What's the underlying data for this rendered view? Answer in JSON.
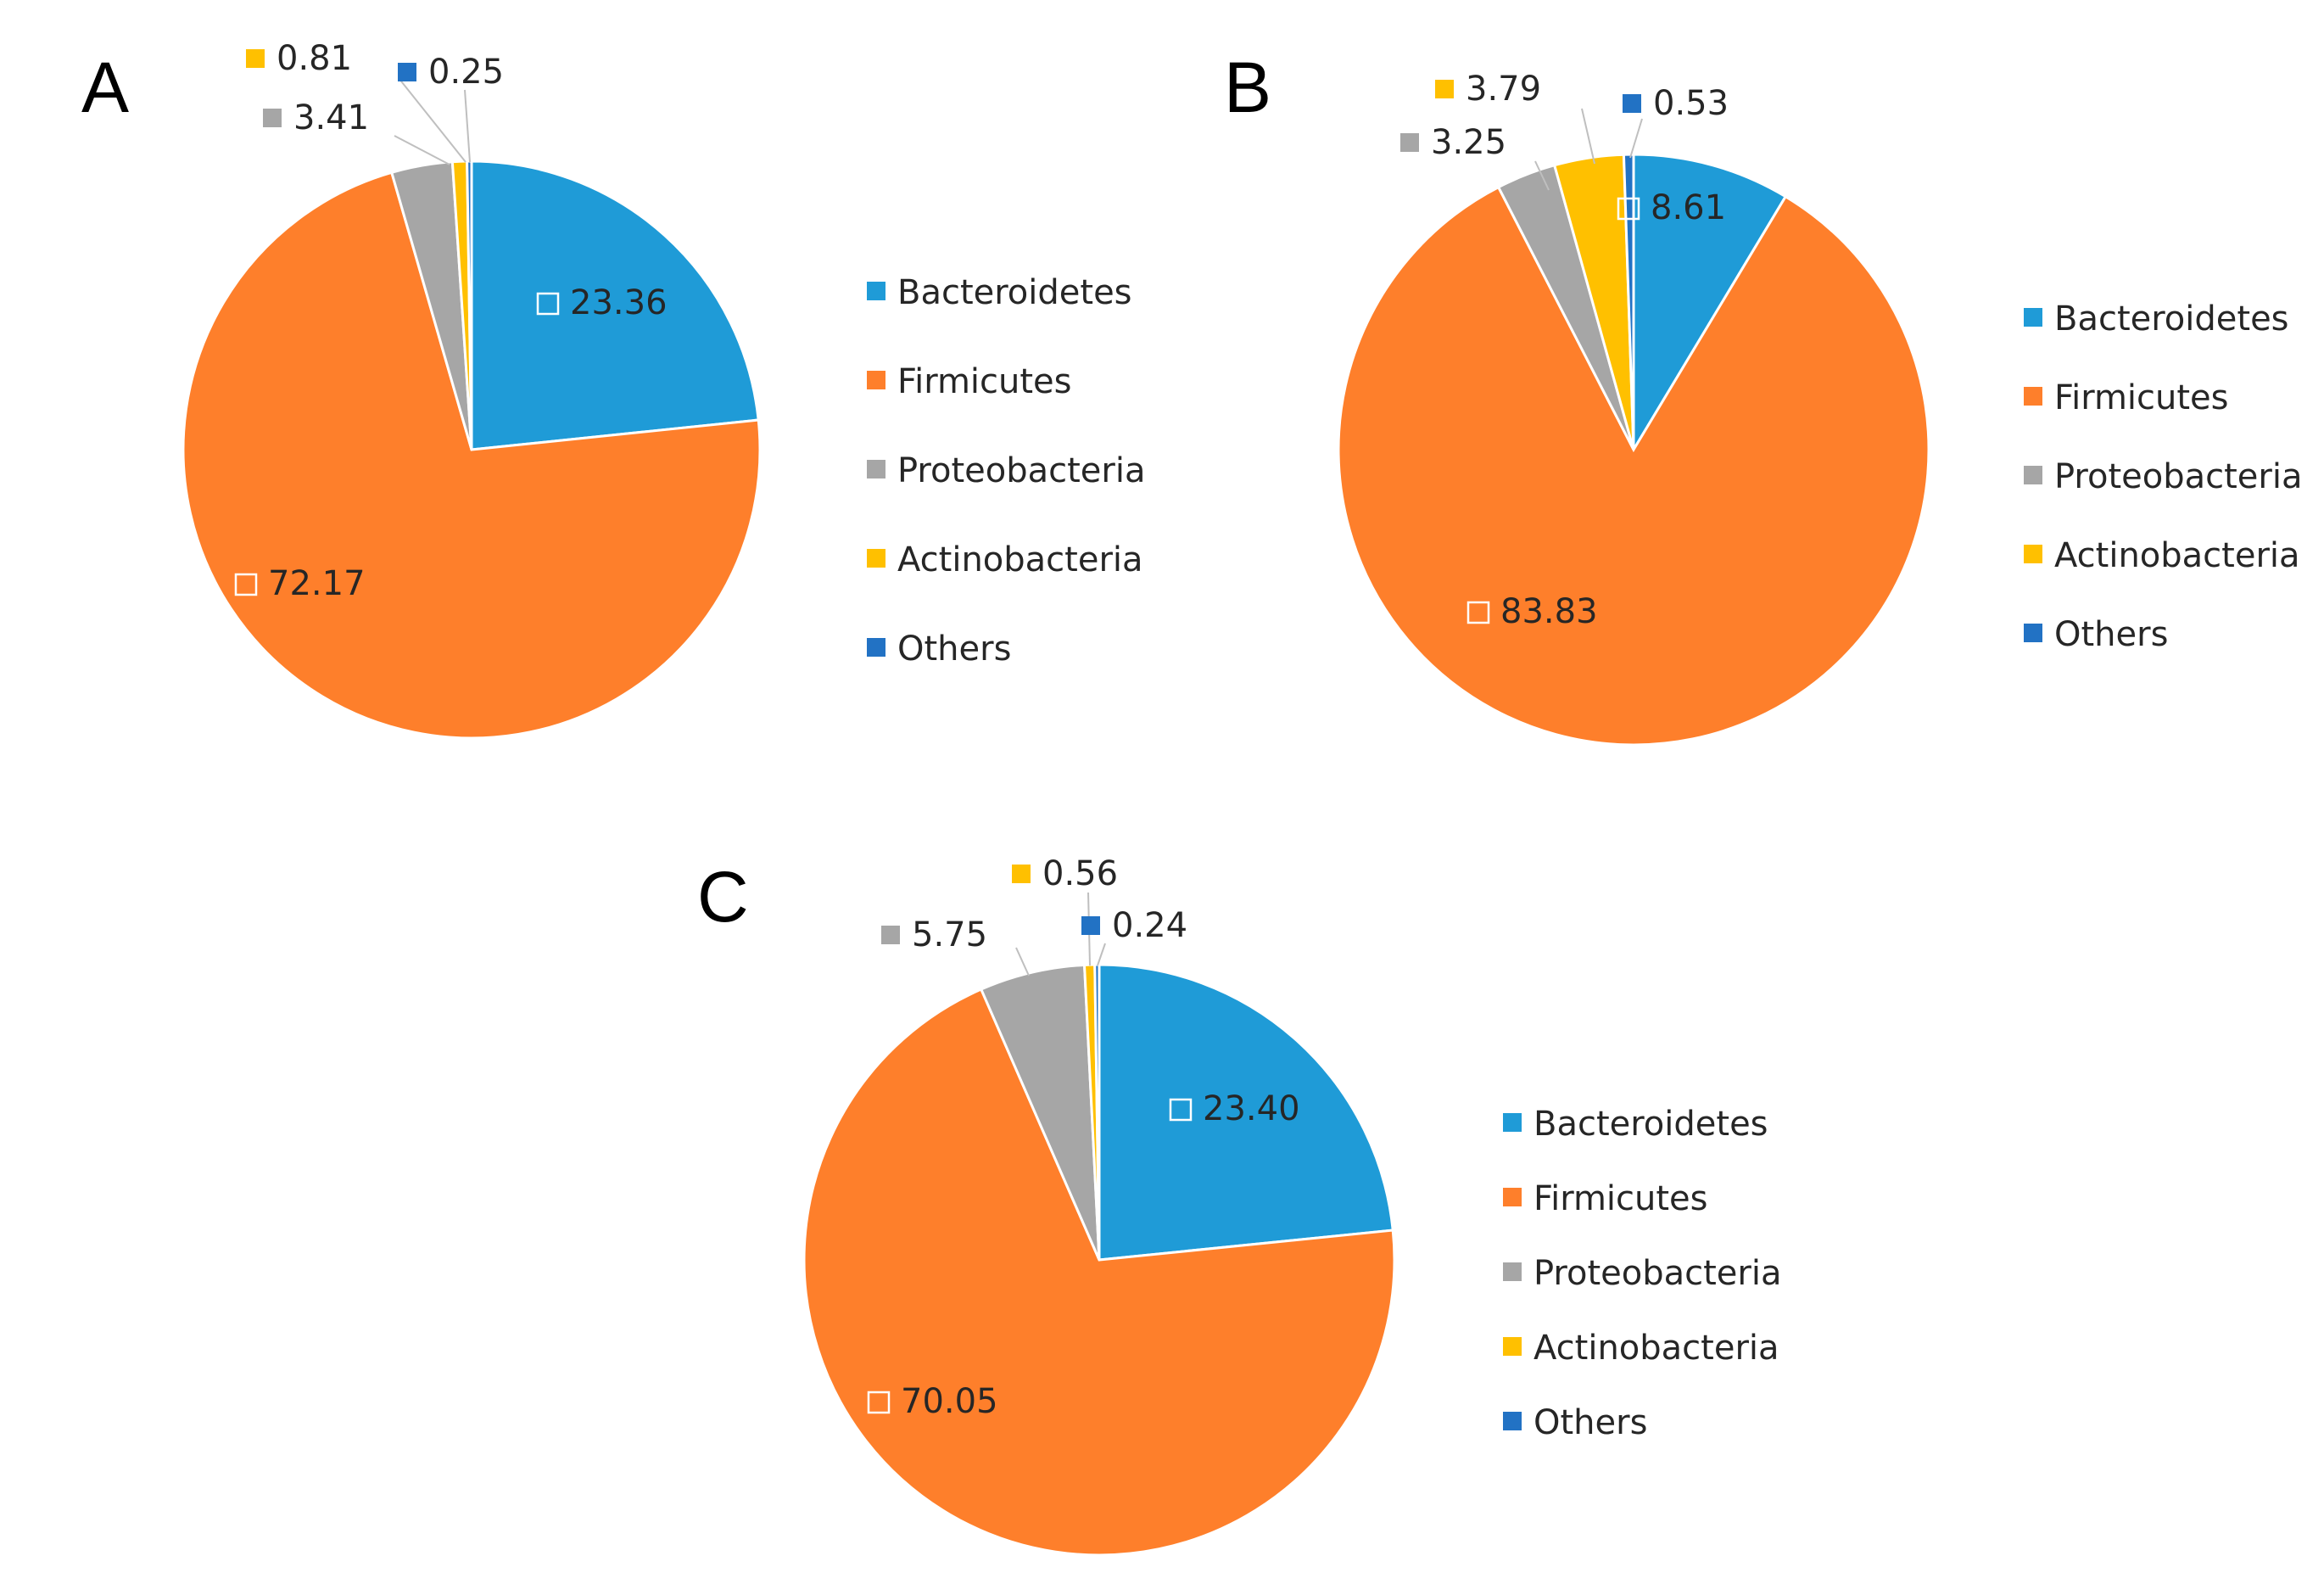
{
  "colors": {
    "Bacteroidetes": "#1f9bd7",
    "Firmicutes": "#fe7f2b",
    "Proteobacteria": "#a6a6a6",
    "Actinobacteria": "#ffc000",
    "Others": "#2272c4"
  },
  "legend": [
    "Bacteroidetes",
    "Firmicutes",
    "Proteobacteria",
    "Actinobacteria",
    "Others"
  ],
  "chart_data": [
    {
      "type": "pie",
      "panel": "A",
      "categories": [
        "Bacteroidetes",
        "Firmicutes",
        "Proteobacteria",
        "Actinobacteria",
        "Others"
      ],
      "values": [
        23.36,
        72.17,
        3.41,
        0.81,
        0.25
      ],
      "labels": [
        "23.36",
        "72.17",
        "3.41",
        "0.81",
        "0.25"
      ],
      "legend_position": "right"
    },
    {
      "type": "pie",
      "panel": "B",
      "categories": [
        "Bacteroidetes",
        "Firmicutes",
        "Proteobacteria",
        "Actinobacteria",
        "Others"
      ],
      "values": [
        8.61,
        83.83,
        3.25,
        3.79,
        0.53
      ],
      "labels": [
        "8.61",
        "83.83",
        "3.25",
        "3.79",
        "0.53"
      ],
      "legend_position": "right"
    },
    {
      "type": "pie",
      "panel": "C",
      "categories": [
        "Bacteroidetes",
        "Firmicutes",
        "Proteobacteria",
        "Actinobacteria",
        "Others"
      ],
      "values": [
        23.4,
        70.05,
        5.75,
        0.56,
        0.24
      ],
      "labels": [
        "23.40",
        "70.05",
        "5.75",
        "0.56",
        "0.24"
      ],
      "legend_position": "right"
    }
  ]
}
